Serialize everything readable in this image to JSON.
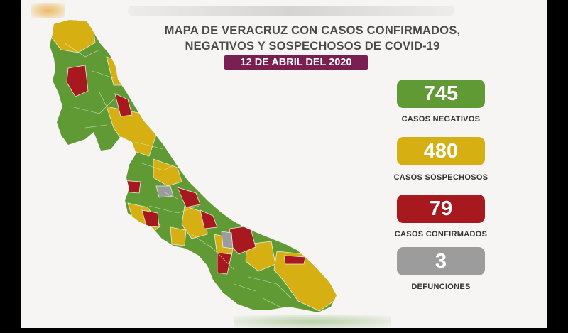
{
  "title": {
    "line1": "MAPA DE VERACRUZ CON CASOS CONFIRMADOS,",
    "line2": "NEGATIVOS Y SOSPECHOSOS DE COVID-19"
  },
  "date": "12 DE ABRIL DEL 2020",
  "colors": {
    "negative": "#5f9a35",
    "suspect": "#d6b012",
    "confirmed": "#a8191f",
    "deaths": "#9c9c9c",
    "date_badge": "#7a1f52"
  },
  "stats": [
    {
      "key": "negativos",
      "value": "745",
      "label": "CASOS NEGATIVOS",
      "color": "#5f9a35"
    },
    {
      "key": "sospechosos",
      "value": "480",
      "label": "CASOS SOSPECHOSOS",
      "color": "#d6b012"
    },
    {
      "key": "confirmados",
      "value": "79",
      "label": "CASOS CONFIRMADOS",
      "color": "#a8191f"
    },
    {
      "key": "defunciones",
      "value": "3",
      "label": "DEFUNCIONES",
      "color": "#9c9c9c"
    }
  ]
}
